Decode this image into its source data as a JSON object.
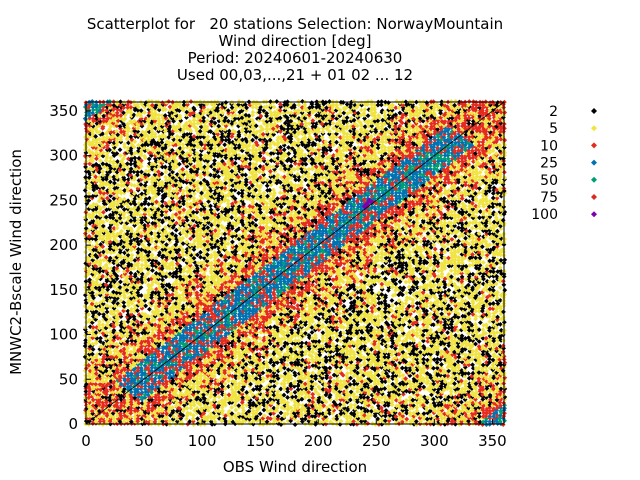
{
  "chart_data": {
    "type": "scatter",
    "title_lines": [
      "Scatterplot for   20 stations Selection: NorwayMountain",
      "Wind direction [deg]",
      "Period: 20240601-20240630",
      "Used 00,03,...,21 + 01 02 ... 12"
    ],
    "xlabel": "OBS Wind direction",
    "ylabel": "MNWC2-Bscale Wind direction",
    "xlim": [
      0,
      360
    ],
    "ylim": [
      0,
      360
    ],
    "x_ticks": [
      0,
      50,
      100,
      150,
      200,
      250,
      300,
      350
    ],
    "y_ticks": [
      0,
      50,
      100,
      150,
      200,
      250,
      300,
      350
    ],
    "diagonal_line": true,
    "legend_placement": "right",
    "legend": [
      {
        "label": "2",
        "color": "#000000"
      },
      {
        "label": "5",
        "color": "#f0e442"
      },
      {
        "label": "10",
        "color": "#e52b1e"
      },
      {
        "label": "25",
        "color": "#0072b2"
      },
      {
        "label": "50",
        "color": "#009e73"
      },
      {
        "label": "75",
        "color": "#d62d20"
      },
      {
        "label": "100",
        "color": "#7b00b0"
      }
    ],
    "density_description": "points binned by count; highest counts (25-100) concentrated along the diagonal y=x, especially between 50 and 330 deg; low counts (2-5) fill the off-diagonal area"
  }
}
